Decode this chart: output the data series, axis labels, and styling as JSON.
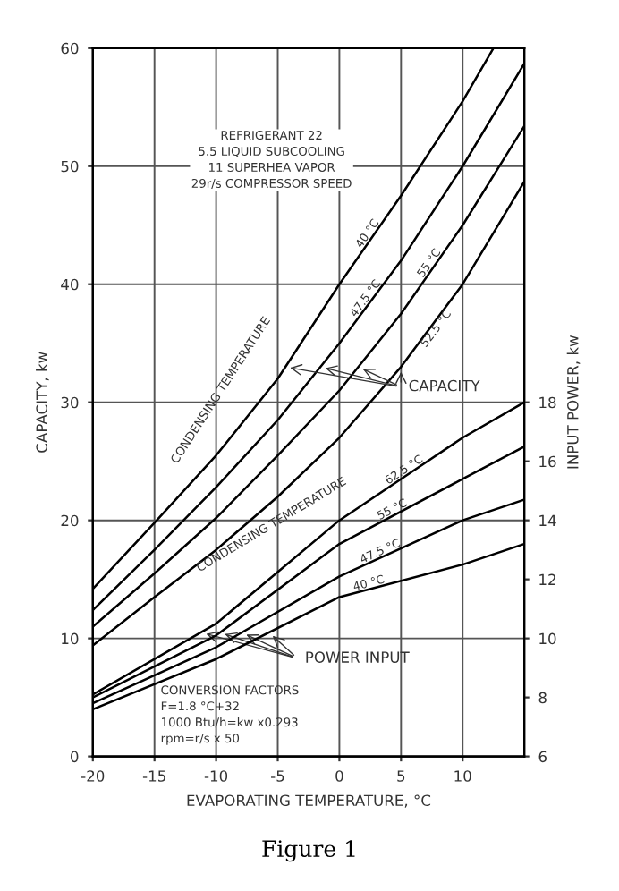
{
  "chart_data": {
    "type": "line",
    "xlabel": "EVAPORATING TEMPERATURE, °C",
    "ylabel": "CAPACITY, kw",
    "y2label": "INPUT POWER, kw",
    "xlim": [
      -20,
      15
    ],
    "xticks": [
      -20,
      -15,
      -10,
      -5,
      0,
      5,
      10
    ],
    "ylim": [
      0,
      60
    ],
    "yticks": [
      0,
      10,
      20,
      30,
      40,
      50,
      60
    ],
    "y2lim": [
      6,
      30
    ],
    "y2ticks": [
      6,
      8,
      10,
      12,
      14,
      16,
      18
    ],
    "grid": true,
    "legend": false,
    "marker": "none",
    "line_style": "solid",
    "series": [
      {
        "name": "40 °C",
        "color": "#000000",
        "x": [
          -20,
          -15,
          -10,
          -5,
          0,
          5,
          10,
          12.5
        ],
        "values": [
          14.2,
          19.8,
          25.5,
          32,
          40,
          47.5,
          55.5,
          60
        ]
      },
      {
        "name": "47.5 °C",
        "color": "#000000",
        "x": [
          -20,
          -15,
          -10,
          -5,
          0,
          5,
          10,
          15
        ],
        "values": [
          12.4,
          17.5,
          22.8,
          28.5,
          35,
          42,
          50,
          58.7
        ]
      },
      {
        "name": "55 °C",
        "color": "#000000",
        "x": [
          -20,
          -15,
          -10,
          -5,
          0,
          5,
          10,
          15
        ],
        "values": [
          11.0,
          15.5,
          20.2,
          25.5,
          31,
          37.5,
          45,
          53.4
        ]
      },
      {
        "name": "52.5 °C",
        "color": "#000000",
        "x": [
          -20,
          -15,
          -10,
          -5,
          0,
          5,
          10,
          15
        ],
        "values": [
          9.4,
          13.5,
          17.5,
          22,
          27,
          33,
          40,
          48.7
        ]
      },
      {
        "name": "62.5 °C",
        "color": "#000000",
        "axis": "y2",
        "x": [
          -20,
          -10,
          0,
          10,
          15
        ],
        "values": [
          8.1,
          10.5,
          14.0,
          16.8,
          18.0
        ]
      },
      {
        "name": "55 °C",
        "color": "#000000",
        "axis": "y2",
        "x": [
          -20,
          -10,
          0,
          10,
          15
        ],
        "values": [
          8.0,
          10.1,
          13.2,
          15.4,
          16.5
        ]
      },
      {
        "name": "47.5 °C",
        "color": "#000000",
        "axis": "y2",
        "x": [
          -20,
          -10,
          0,
          10,
          15
        ],
        "values": [
          7.8,
          9.7,
          12.1,
          14.0,
          14.7
        ]
      },
      {
        "name": "40 °C",
        "color": "#000000",
        "axis": "y2",
        "x": [
          -20,
          -10,
          0,
          10,
          15
        ],
        "values": [
          7.6,
          9.3,
          11.4,
          12.5,
          13.2
        ]
      }
    ],
    "annotations": [
      "REFRIGERANT 22\n5.5 LIQUID SUBCOOLING\n11 SUPERHEA VAPOR\n29r/s COMPRESSOR SPEED",
      "CONDENSING TEMPERATURE",
      {
        "text": "CAPACITY",
        "x": -4.4,
        "y": 33
      },
      "CONDENSING TEMPERATURE",
      {
        "text": "POWER INPUT",
        "x": -11.2,
        "y": 10.5
      },
      "CONVERSION FACTORS\nF=1.8 °C+32\n1000 Btu/h=kw x0.293\nrpm=r/s x 50",
      "Figure 1"
    ]
  }
}
